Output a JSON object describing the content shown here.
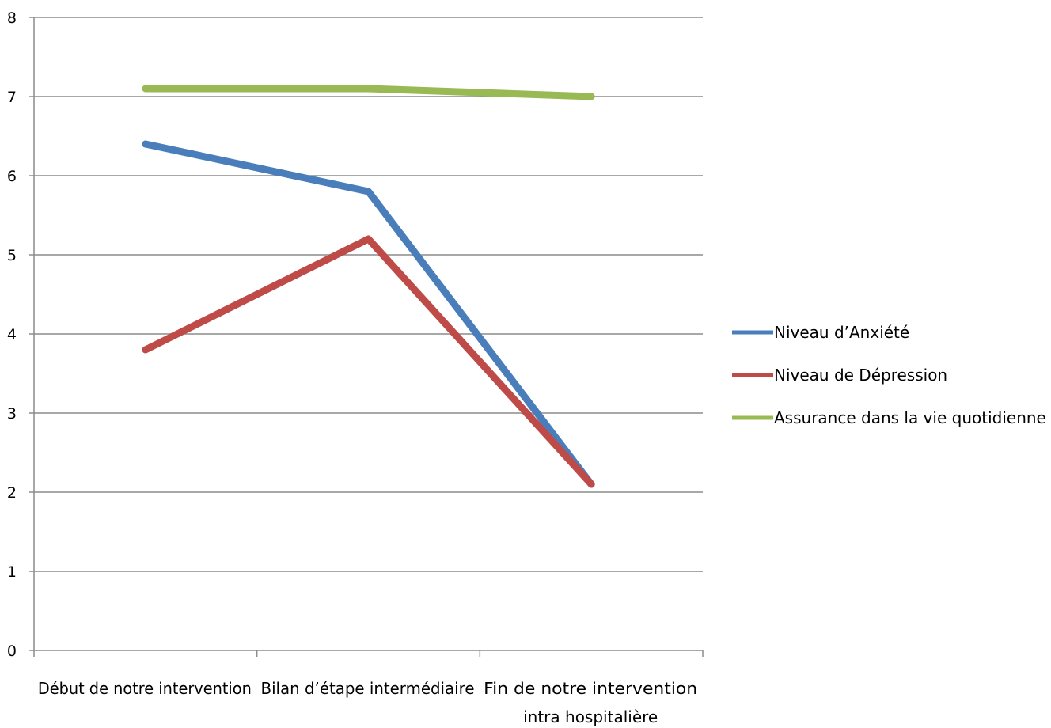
{
  "chart_data": {
    "type": "line",
    "title": "",
    "xlabel": "",
    "ylabel": "",
    "categories": [
      [
        "Début de notre intervention"
      ],
      [
        "Bilan d’étape intermédiaire"
      ],
      [
        "Fin de notre intervention",
        "intra hospitalière"
      ]
    ],
    "ylim": [
      0,
      8
    ],
    "yticks": [
      "0",
      "1",
      "2",
      "3",
      "4",
      "5",
      "6",
      "7",
      "8"
    ],
    "grid": true,
    "legend_position": "right",
    "series": [
      {
        "name": "Niveau d’Anxiété",
        "values": [
          6.4,
          5.8,
          2.1
        ],
        "color": "#4a7ebb"
      },
      {
        "name": "Niveau de Dépression",
        "values": [
          3.8,
          5.2,
          2.1
        ],
        "color": "#be4b48"
      },
      {
        "name": "Assurance dans la vie quotidienne",
        "values": [
          7.1,
          7.1,
          7.0
        ],
        "color": "#98b954"
      }
    ]
  }
}
